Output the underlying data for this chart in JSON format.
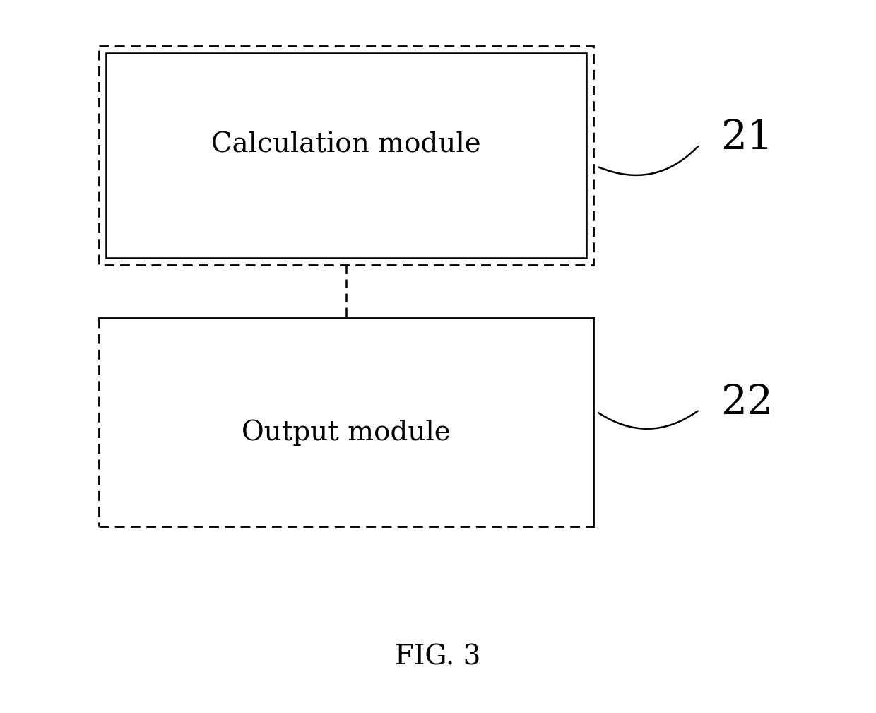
{
  "background_color": "#ffffff",
  "fig_width": 12.4,
  "fig_height": 10.09,
  "box1_label": "Calculation module",
  "box2_label": "Output module",
  "ref1": "21",
  "ref2": "22",
  "caption": "FIG. 3",
  "label_fontsize": 28,
  "ref_fontsize": 42,
  "caption_fontsize": 28,
  "text_color": "#000000",
  "line_color": "#000000",
  "dpi": 100
}
